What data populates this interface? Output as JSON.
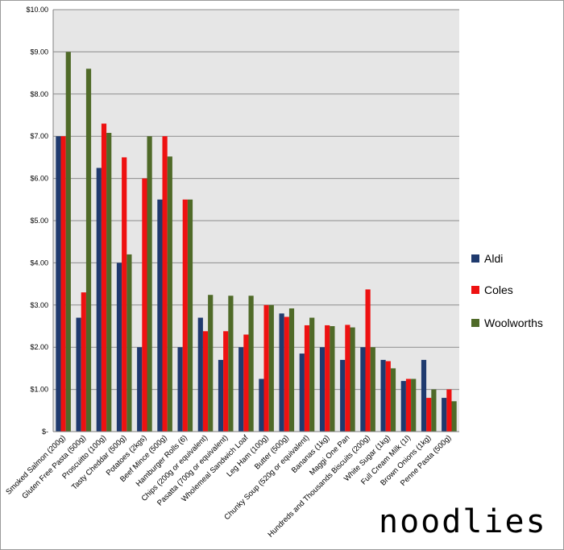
{
  "chart_data": {
    "type": "bar",
    "categories": [
      "Smoked Salmon (200g)",
      "Gluten Free Pasta (500g)",
      "Proscuitto (100g)",
      "Tasty Cheddar (500g)",
      "Potatoes (2kgs)",
      "Beef Mince (500g)",
      "Hamburger Rolls (6)",
      "Chips (200g or equivalent)",
      "Pasatta (700g or equivalent)",
      "Wholemeal Sandwich Loaf",
      "Leg Ham (100g)",
      "Butter (500g)",
      "Chunky Soup (520g or equivalent)",
      "Bananas (1kg)",
      "Maggi One Pan",
      "Hundreds and Thousands Biscuits (200g)",
      "White Sugar (1kg)",
      "Full Cream Milk (1l)",
      "Brown Onions (1kg)",
      "Penne Pasta (500g)"
    ],
    "series": [
      {
        "name": "Aldi",
        "color": "#1f3a6e",
        "values": [
          7.0,
          2.7,
          6.25,
          4.0,
          2.0,
          5.5,
          2.0,
          2.7,
          1.7,
          2.0,
          1.25,
          2.8,
          1.85,
          2.0,
          1.7,
          2.0,
          1.7,
          1.2,
          1.7,
          0.8
        ]
      },
      {
        "name": "Coles",
        "color": "#ee1111",
        "values": [
          7.0,
          3.3,
          7.3,
          6.5,
          6.0,
          7.0,
          5.5,
          2.38,
          2.38,
          2.3,
          3.0,
          2.72,
          2.52,
          2.52,
          2.53,
          3.37,
          1.67,
          1.25,
          0.8,
          1.0
        ]
      },
      {
        "name": "Woolworths",
        "color": "#4f6a28",
        "values": [
          9.0,
          8.6,
          7.08,
          4.2,
          7.0,
          6.52,
          5.5,
          3.24,
          3.22,
          3.22,
          3.0,
          2.92,
          2.7,
          2.5,
          2.47,
          2.0,
          1.5,
          1.25,
          1.0,
          0.72
        ]
      }
    ],
    "yticks": [
      "$-",
      "$1.00",
      "$2.00",
      "$3.00",
      "$4.00",
      "$5.00",
      "$6.00",
      "$7.00",
      "$8.00",
      "$9.00",
      "$10.00"
    ],
    "ylim": [
      0,
      10
    ],
    "grid": true,
    "legend_position": "right"
  },
  "watermark": "noodlies"
}
